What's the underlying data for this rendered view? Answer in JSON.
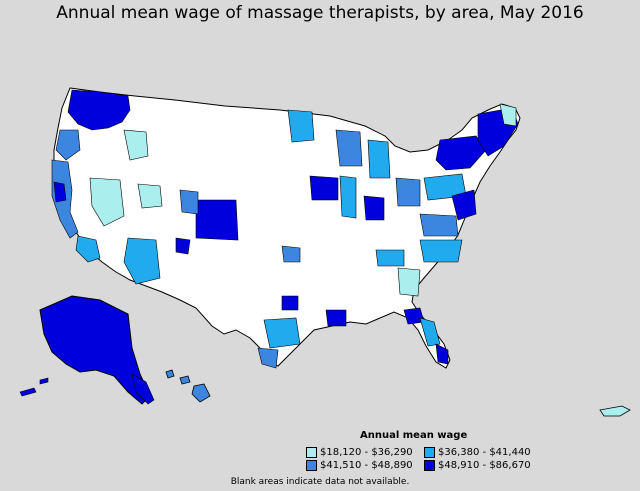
{
  "title": "Annual mean wage of massage therapists, by area, May 2016",
  "legend": {
    "title": "Annual mean wage",
    "items": [
      {
        "label": "$18,120 - $36,290",
        "color": "#aaeeee"
      },
      {
        "label": "$36,380 - $41,440",
        "color": "#22aaee"
      },
      {
        "label": "$41,510 - $48,890",
        "color": "#3d86e0"
      },
      {
        "label": "$48,910 - $86,670",
        "color": "#0000dd"
      }
    ]
  },
  "colors": {
    "background": "#d9d9d9",
    "no_data": "#ffffff",
    "border": "#000000"
  },
  "footnote": "Blank areas indicate data not available."
}
